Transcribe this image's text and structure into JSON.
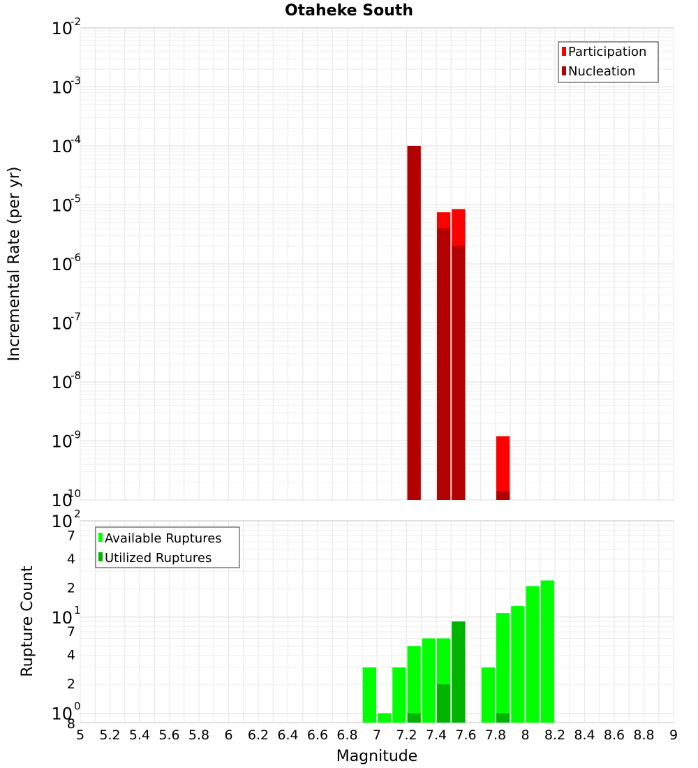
{
  "title": "Otaheke South",
  "xlabel": "Magnitude",
  "x_ticks": [
    "5",
    "5.2",
    "5.4",
    "5.6",
    "5.8",
    "6",
    "6.2",
    "6.4",
    "6.6",
    "6.8",
    "7",
    "7.2",
    "7.4",
    "7.6",
    "7.8",
    "8",
    "8.2",
    "8.4",
    "8.6",
    "8.8",
    "9"
  ],
  "colors": {
    "participation": "#ff0000",
    "nucleation": "#b30000",
    "available": "#00ff00",
    "utilized": "#00b400",
    "grid": "#e6e6e6",
    "frame": "#c0c0c0"
  },
  "chart_data": [
    {
      "type": "bar",
      "name": "rate-panel",
      "ylabel": "Incremental Rate (per yr)",
      "yscale": "log",
      "ylim": [
        1e-10,
        0.01
      ],
      "xlim": [
        5,
        9
      ],
      "bar_width": 0.1,
      "y_major_ticks": [
        {
          "base": "10",
          "exp": "-2"
        },
        {
          "base": "10",
          "exp": "-3"
        },
        {
          "base": "10",
          "exp": "-4"
        },
        {
          "base": "10",
          "exp": "-5"
        },
        {
          "base": "10",
          "exp": "-6"
        },
        {
          "base": "10",
          "exp": "-7"
        },
        {
          "base": "10",
          "exp": "-8"
        },
        {
          "base": "10",
          "exp": "-9"
        },
        {
          "base": "10",
          "exp": "-10"
        }
      ],
      "legend": [
        "Participation",
        "Nucleation"
      ],
      "series": [
        {
          "name": "Participation",
          "x": [
            7.25,
            7.45,
            7.55,
            7.85
          ],
          "values": [
            0.0001,
            7.5e-06,
            8.5e-06,
            1.2e-09
          ]
        },
        {
          "name": "Nucleation",
          "x": [
            7.25,
            7.45,
            7.55,
            7.85
          ],
          "values": [
            0.0001,
            4e-06,
            2e-06,
            1.4e-10
          ]
        }
      ]
    },
    {
      "type": "bar",
      "name": "count-panel",
      "ylabel": "Rupture Count",
      "yscale": "log",
      "ylim": [
        0.8,
        100
      ],
      "xlim": [
        5,
        9
      ],
      "bar_width": 0.1,
      "y_major_ticks": [
        {
          "value": 100,
          "base": "10",
          "exp": "2"
        },
        {
          "value": 10,
          "base": "10",
          "exp": "1"
        },
        {
          "value": 1,
          "base": "10",
          "exp": "0"
        }
      ],
      "y_minor_ticks": [
        {
          "value": 70,
          "label": "7"
        },
        {
          "value": 40,
          "label": "4"
        },
        {
          "value": 20,
          "label": "2"
        },
        {
          "value": 7,
          "label": "7"
        },
        {
          "value": 4,
          "label": "4"
        },
        {
          "value": 2,
          "label": "2"
        },
        {
          "value": 0.8,
          "label": "8"
        }
      ],
      "legend": [
        "Available Ruptures",
        "Utilized Ruptures"
      ],
      "series": [
        {
          "name": "Available Ruptures",
          "x": [
            6.95,
            7.05,
            7.15,
            7.25,
            7.35,
            7.45,
            7.55,
            7.75,
            7.85,
            7.95,
            8.05,
            8.15
          ],
          "values": [
            3,
            1,
            3,
            5,
            6,
            6,
            9,
            3,
            11,
            13,
            21,
            24
          ]
        },
        {
          "name": "Utilized Ruptures",
          "x": [
            7.25,
            7.45,
            7.55,
            7.85
          ],
          "values": [
            1,
            2,
            9,
            1
          ]
        }
      ]
    }
  ]
}
